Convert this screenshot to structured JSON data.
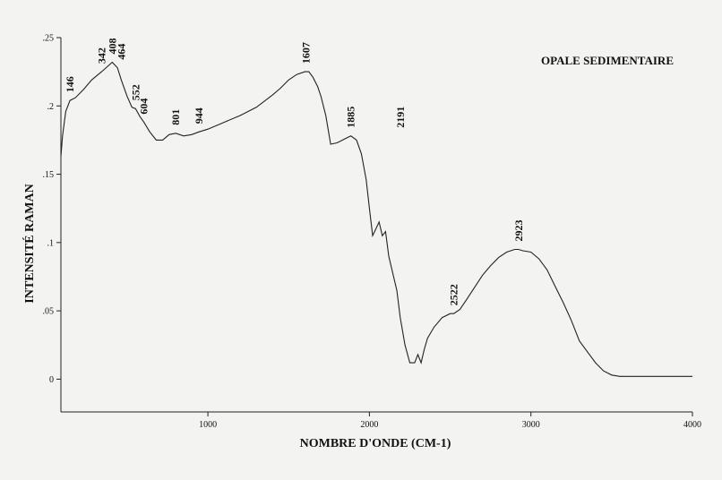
{
  "chart_data": {
    "type": "line",
    "title": "OPALE SEDIMENTAIRE",
    "xlabel": "NOMBRE D'ONDE (CM-1)",
    "ylabel": "INTENSITÉ RAMAN",
    "xlim": [
      90,
      4000
    ],
    "ylim": [
      -0.024,
      0.25
    ],
    "x_ticks": [
      1000,
      2000,
      3000,
      4000
    ],
    "x_tick_labels": [
      "1000",
      "2000",
      "3000",
      "4000"
    ],
    "y_ticks": [
      0,
      0.05,
      0.1,
      0.15,
      0.2,
      0.25
    ],
    "y_tick_labels": [
      "0",
      ".05",
      ".1",
      ".15",
      ".2",
      ".25"
    ],
    "grid": false,
    "series": [
      {
        "x": [
          90,
          100,
          120,
          146,
          180,
          230,
          280,
          342,
          380,
          408,
          440,
          464,
          500,
          530,
          552,
          580,
          604,
          640,
          680,
          720,
          760,
          801,
          850,
          900,
          944,
          1000,
          1100,
          1200,
          1300,
          1400,
          1450,
          1500,
          1550,
          1600,
          1625,
          1650,
          1680,
          1700,
          1730,
          1760,
          1800,
          1850,
          1885,
          1920,
          1950,
          1980,
          2000,
          2020,
          2040,
          2060,
          2080,
          2100,
          2120,
          2150,
          2170,
          2191,
          2220,
          2250,
          2280,
          2300,
          2320,
          2340,
          2360,
          2400,
          2450,
          2500,
          2522,
          2560,
          2600,
          2650,
          2700,
          2750,
          2800,
          2850,
          2900,
          2923,
          2950,
          3000,
          3050,
          3100,
          3150,
          3200,
          3250,
          3300,
          3350,
          3400,
          3450,
          3500,
          3550,
          3600,
          3700,
          3800,
          3900,
          4000
        ],
        "y": [
          0.163,
          0.178,
          0.196,
          0.204,
          0.206,
          0.212,
          0.219,
          0.225,
          0.229,
          0.232,
          0.228,
          0.219,
          0.207,
          0.199,
          0.198,
          0.192,
          0.188,
          0.181,
          0.175,
          0.175,
          0.179,
          0.18,
          0.178,
          0.179,
          0.181,
          0.183,
          0.188,
          0.193,
          0.199,
          0.208,
          0.213,
          0.219,
          0.223,
          0.225,
          0.225,
          0.221,
          0.214,
          0.207,
          0.193,
          0.172,
          0.173,
          0.176,
          0.178,
          0.175,
          0.165,
          0.146,
          0.125,
          0.105,
          0.11,
          0.115,
          0.105,
          0.108,
          0.09,
          0.075,
          0.065,
          0.045,
          0.025,
          0.012,
          0.012,
          0.018,
          0.012,
          0.022,
          0.03,
          0.038,
          0.045,
          0.048,
          0.048,
          0.051,
          0.058,
          0.067,
          0.076,
          0.083,
          0.089,
          0.093,
          0.095,
          0.095,
          0.094,
          0.093,
          0.088,
          0.08,
          0.068,
          0.056,
          0.043,
          0.028,
          0.02,
          0.012,
          0.006,
          0.003,
          0.002,
          0.002,
          0.002,
          0.002,
          0.002,
          0.002
        ]
      }
    ],
    "peak_labels": [
      {
        "text": "146",
        "x": 146,
        "y": 0.204
      },
      {
        "text": "342",
        "x": 342,
        "y": 0.225
      },
      {
        "text": "408",
        "x": 408,
        "y": 0.232
      },
      {
        "text": "464",
        "x": 464,
        "y": 0.228
      },
      {
        "text": "552",
        "x": 552,
        "y": 0.198
      },
      {
        "text": "604",
        "x": 604,
        "y": 0.188
      },
      {
        "text": "801",
        "x": 801,
        "y": 0.18
      },
      {
        "text": "944",
        "x": 944,
        "y": 0.181
      },
      {
        "text": "1607",
        "x": 1607,
        "y": 0.225
      },
      {
        "text": "1885",
        "x": 1885,
        "y": 0.178
      },
      {
        "text": "2191",
        "x": 2191,
        "y": 0.178
      },
      {
        "text": "2522",
        "x": 2522,
        "y": 0.048
      },
      {
        "text": "2923",
        "x": 2923,
        "y": 0.095
      }
    ]
  }
}
